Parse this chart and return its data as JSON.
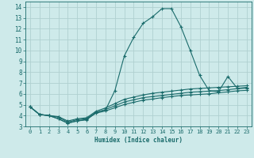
{
  "xlabel": "Humidex (Indice chaleur)",
  "bg_color": "#ceeaea",
  "grid_color": "#b0d0d0",
  "line_color": "#1a6b6b",
  "xlim": [
    -0.5,
    23.5
  ],
  "ylim": [
    3,
    14.5
  ],
  "yticks": [
    3,
    4,
    5,
    6,
    7,
    8,
    9,
    10,
    11,
    12,
    13,
    14
  ],
  "xticks": [
    0,
    1,
    2,
    3,
    4,
    5,
    6,
    7,
    8,
    9,
    10,
    11,
    12,
    13,
    14,
    15,
    16,
    17,
    18,
    19,
    20,
    21,
    22,
    23
  ],
  "lines": [
    {
      "x": [
        0,
        1,
        2,
        3,
        4,
        5,
        6,
        7,
        8,
        9,
        10,
        11,
        12,
        13,
        14,
        15,
        16,
        17,
        18,
        19,
        20,
        21,
        22,
        23
      ],
      "y": [
        4.8,
        4.1,
        4.0,
        3.7,
        3.3,
        3.5,
        3.6,
        4.3,
        4.5,
        6.3,
        9.5,
        11.2,
        12.5,
        13.1,
        13.85,
        13.85,
        12.2,
        10.0,
        7.7,
        6.3,
        6.2,
        7.6,
        6.5,
        6.6
      ]
    },
    {
      "x": [
        0,
        1,
        2,
        3,
        4,
        5,
        6,
        7,
        8,
        9,
        10,
        11,
        12,
        13,
        14,
        15,
        16,
        17,
        18,
        19,
        20,
        21,
        22,
        23
      ],
      "y": [
        4.8,
        4.1,
        4.0,
        3.9,
        3.5,
        3.7,
        3.8,
        4.4,
        4.7,
        5.1,
        5.5,
        5.7,
        5.9,
        6.05,
        6.15,
        6.25,
        6.35,
        6.45,
        6.5,
        6.55,
        6.6,
        6.65,
        6.7,
        6.75
      ]
    },
    {
      "x": [
        0,
        1,
        2,
        3,
        4,
        5,
        6,
        7,
        8,
        9,
        10,
        11,
        12,
        13,
        14,
        15,
        16,
        17,
        18,
        19,
        20,
        21,
        22,
        23
      ],
      "y": [
        4.8,
        4.1,
        4.0,
        3.85,
        3.4,
        3.62,
        3.72,
        4.3,
        4.55,
        4.9,
        5.25,
        5.45,
        5.65,
        5.75,
        5.85,
        5.95,
        6.05,
        6.15,
        6.2,
        6.25,
        6.3,
        6.38,
        6.48,
        6.52
      ]
    },
    {
      "x": [
        0,
        1,
        2,
        3,
        4,
        5,
        6,
        7,
        8,
        9,
        10,
        11,
        12,
        13,
        14,
        15,
        16,
        17,
        18,
        19,
        20,
        21,
        22,
        23
      ],
      "y": [
        4.8,
        4.1,
        4.0,
        3.7,
        3.3,
        3.52,
        3.65,
        4.22,
        4.42,
        4.72,
        5.02,
        5.22,
        5.42,
        5.52,
        5.65,
        5.75,
        5.85,
        5.9,
        5.95,
        6.0,
        6.1,
        6.18,
        6.28,
        6.32
      ]
    }
  ]
}
